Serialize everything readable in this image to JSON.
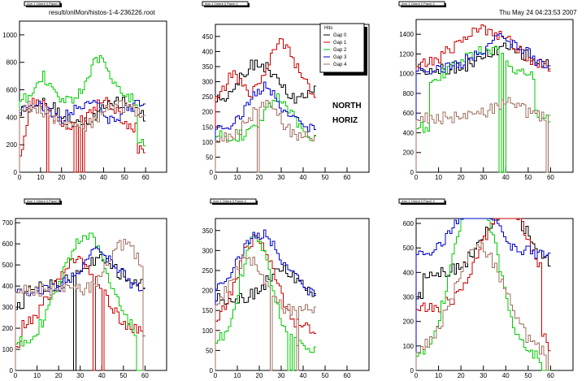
{
  "header": {
    "filename": "result/onlMon/histos-1-4-236226.root",
    "timestamp": "Thu May 24 04:23:53 2007"
  },
  "annotations": [
    "NORTH",
    "HORIZ"
  ],
  "legend": {
    "title": "Hits",
    "entries": [
      {
        "name": "Gap 0",
        "color": "#000000"
      },
      {
        "name": "Gap 1",
        "color": "#cc0000"
      },
      {
        "name": "Gap 2",
        "color": "#00cc00"
      },
      {
        "name": "Gap 3",
        "color": "#0000cc"
      },
      {
        "name": "Gap 4",
        "color": "#a07060"
      }
    ]
  },
  "chart_data": [
    {
      "type": "line",
      "title": "Arm 1 Orient 0 Panel 0",
      "xlim": [
        0,
        70
      ],
      "ylim": [
        0,
        1100
      ],
      "xticks": [
        0,
        10,
        20,
        30,
        40,
        50,
        60
      ],
      "yticks": [
        0,
        200,
        400,
        600,
        800,
        1000
      ],
      "series": [
        {
          "color": "#000000",
          "values": [
            null,
            null,
            null,
            null,
            null,
            null,
            null,
            null,
            null,
            null,
            null,
            null,
            null,
            null,
            null,
            null,
            null,
            null,
            null,
            null,
            null,
            null,
            null,
            null,
            null,
            null,
            null,
            null,
            null,
            null,
            null,
            null,
            null,
            null,
            null,
            null,
            null,
            null,
            null,
            null,
            null,
            null,
            null,
            null,
            null,
            null,
            null,
            null,
            null,
            null,
            null,
            null,
            null,
            null,
            null,
            null,
            null,
            null,
            null,
            null,
            null,
            null,
            null,
            null,
            null,
            null,
            null,
            null,
            null,
            null
          ]
        },
        {
          "color": "#cc0000",
          "values": [
            null,
            null,
            null,
            null,
            null,
            null,
            null,
            null,
            null,
            null,
            null,
            null,
            null,
            null,
            null,
            null,
            null,
            null,
            null,
            null,
            null,
            null,
            null,
            null,
            null,
            null,
            null,
            null,
            null,
            null,
            null,
            null,
            null,
            null,
            null,
            null,
            null,
            null,
            null,
            null,
            null,
            null,
            null,
            null,
            null,
            null,
            null,
            null,
            null,
            null,
            null,
            null,
            null,
            null,
            null,
            null,
            null,
            null,
            null,
            null,
            null,
            null,
            null,
            null,
            null,
            null,
            null,
            null,
            null,
            null
          ]
        },
        {
          "color": "#00cc00",
          "values": [
            null,
            null,
            null,
            null,
            null,
            null,
            null,
            null,
            null,
            null,
            null,
            null,
            null,
            null,
            null,
            null,
            null,
            null,
            null,
            null,
            null,
            null,
            null,
            null,
            null,
            null,
            null,
            null,
            null,
            null,
            null,
            null,
            null,
            null,
            null,
            null,
            null,
            null,
            null,
            null,
            null,
            null,
            null,
            null,
            null,
            null,
            null,
            null,
            null,
            null,
            null,
            null,
            null,
            null,
            null,
            null,
            null,
            null,
            null,
            null,
            null,
            null,
            null,
            null,
            null,
            null,
            null,
            null,
            null,
            null
          ]
        },
        {
          "color": "#0000cc",
          "values": [
            null,
            null,
            null,
            null,
            null,
            null,
            null,
            null,
            null,
            null,
            null,
            null,
            null,
            null,
            null,
            null,
            null,
            null,
            null,
            null,
            null,
            null,
            null,
            null,
            null,
            null,
            null,
            null,
            null,
            null,
            null,
            null,
            null,
            null,
            null,
            null,
            null,
            null,
            null,
            null,
            null,
            null,
            null,
            null,
            null,
            null,
            null,
            null,
            null,
            null,
            null,
            null,
            null,
            null,
            null,
            null,
            null,
            null,
            null,
            null,
            null,
            null,
            null,
            null,
            null,
            null,
            null,
            null,
            null,
            null
          ]
        },
        {
          "color": "#a07060",
          "values": [
            null,
            null,
            null,
            null,
            null,
            null,
            null,
            null,
            null,
            null,
            null,
            null,
            null,
            null,
            null,
            null,
            null,
            null,
            null,
            null,
            null,
            null,
            null,
            null,
            null,
            null,
            null,
            null,
            null,
            null,
            null,
            null,
            null,
            null,
            null,
            null,
            null,
            null,
            null,
            null,
            null,
            null,
            null,
            null,
            null,
            null,
            null,
            null,
            null,
            null,
            null,
            null,
            null,
            null,
            null,
            null,
            null,
            null,
            null,
            null,
            null,
            null,
            null,
            null,
            null,
            null,
            null,
            null,
            null,
            null
          ]
        }
      ]
    }
  ]
}
